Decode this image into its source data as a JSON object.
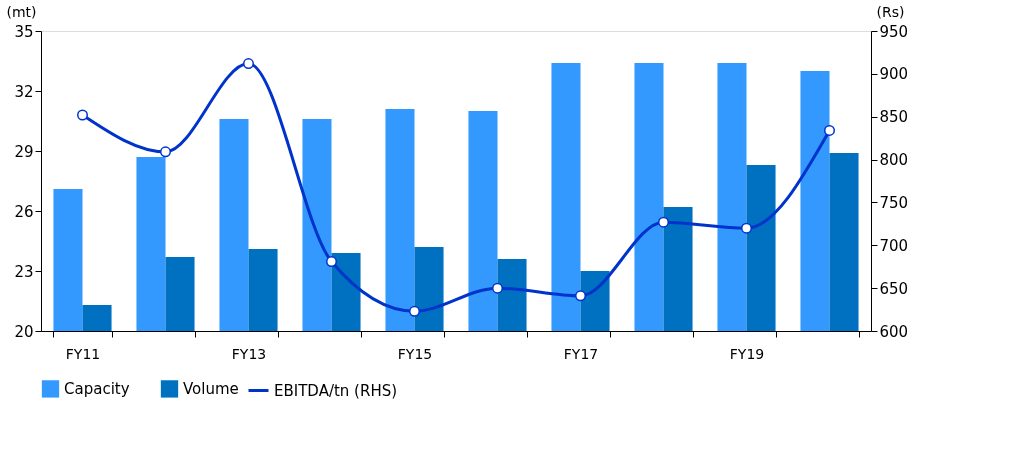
{
  "chart_data": {
    "type": "bar",
    "ylabel": "(mt)",
    "y2label": "(Rs)",
    "categories": [
      "FY11",
      null,
      "FY13",
      null,
      "FY15",
      null,
      "FY17",
      null,
      "FY19",
      null
    ],
    "series": [
      {
        "name": "Capacity",
        "color": "#3399ff",
        "values": [
          27.1,
          28.7,
          30.6,
          30.6,
          31.1,
          31.0,
          33.4,
          33.4,
          33.4,
          33.0
        ]
      },
      {
        "name": "Volume",
        "color": "#0070c0",
        "values": [
          21.3,
          23.7,
          24.1,
          23.9,
          24.2,
          23.6,
          23.0,
          26.2,
          28.3,
          28.9
        ]
      },
      {
        "name": "EBITDA/tn (RHS)",
        "color": "#0033cc",
        "type": "line",
        "axis": "y2",
        "marker": "circle",
        "values": [
          852,
          809,
          912,
          681,
          623,
          650,
          641,
          727,
          720,
          834
        ]
      }
    ],
    "ylim": [
      20,
      35
    ],
    "yticks": [
      20,
      23,
      26,
      29,
      32,
      35
    ],
    "y2lim": [
      600,
      950
    ],
    "y2ticks": [
      600,
      650,
      700,
      750,
      800,
      850,
      900,
      950
    ],
    "grid": false,
    "legend": "bottom"
  }
}
